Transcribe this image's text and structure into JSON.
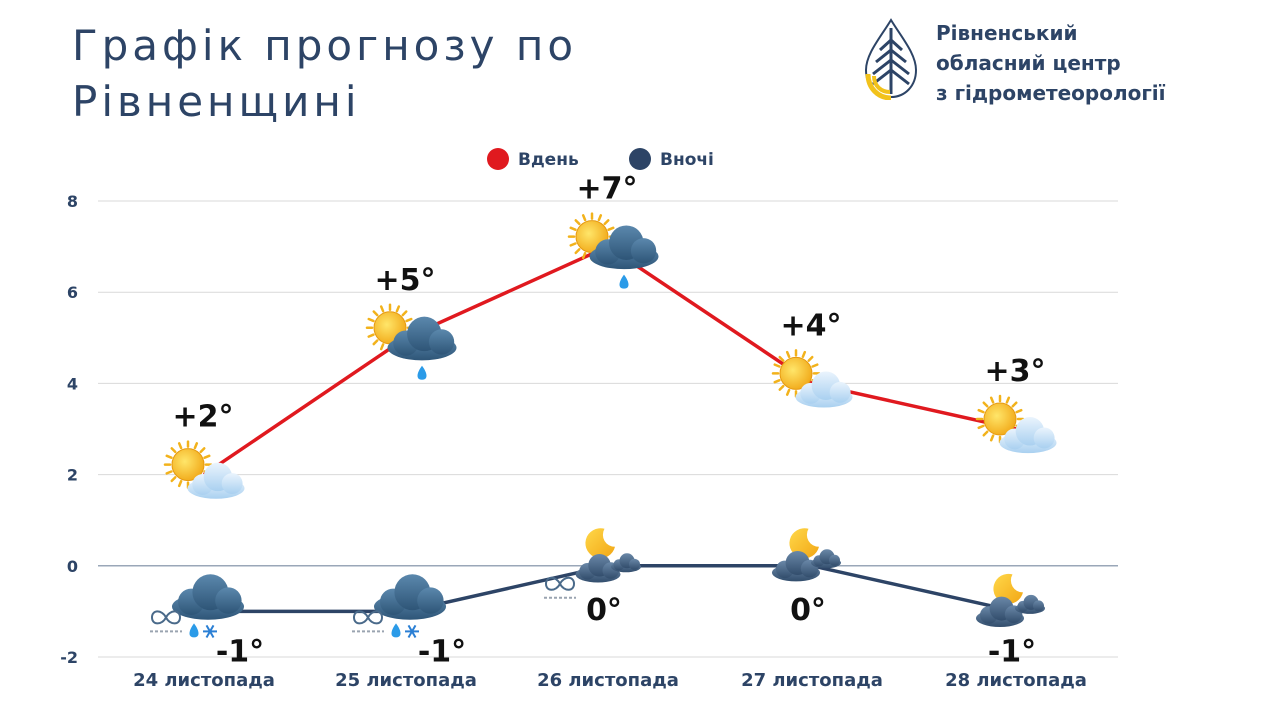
{
  "header": {
    "title_line1": "Графік прогнозу по",
    "title_line2": "Рівненщині"
  },
  "organization": {
    "line1": "Рівненський",
    "line2": "обласний центр",
    "line3": "з гідрометеорології",
    "logo_icon": "water-drop-logo-icon"
  },
  "colors": {
    "day": "#e0191f",
    "night": "#2d4466",
    "text": "#2d4466",
    "grid": "#d9d9d9",
    "logo_blue": "#2d4466",
    "logo_yellow": "#f2c21b"
  },
  "chart_data": {
    "type": "line",
    "categories": [
      "24 листопада",
      "25 листопада",
      "26 листопада",
      "27 листопада",
      "28 листопада"
    ],
    "series": [
      {
        "name": "Вдень",
        "values": [
          2,
          5,
          7,
          4,
          3
        ],
        "labels": [
          "+2°",
          "+5°",
          "+7°",
          "+4°",
          "+3°"
        ],
        "icons": [
          "sun-cloud-icon",
          "sun-cloud-rain-icon",
          "sun-cloud-rain-icon",
          "sun-cloud-icon",
          "sun-cloud-icon"
        ]
      },
      {
        "name": "Вночі",
        "values": [
          -1,
          -1,
          0,
          0,
          -1
        ],
        "labels": [
          "-1°",
          "-1°",
          "0°",
          "0°",
          "-1°"
        ],
        "icons": [
          "cloud-rain-snow-fog-icon",
          "moon-cloud-rain-snow-fog-icon",
          "moon-cloud-fog-icon",
          "moon-cloud-icon",
          "moon-cloud-icon"
        ]
      }
    ],
    "yticks": [
      8,
      6,
      4,
      2,
      0,
      -2
    ],
    "ylim": [
      -2,
      8
    ],
    "grid": true,
    "legend": "top-center"
  }
}
